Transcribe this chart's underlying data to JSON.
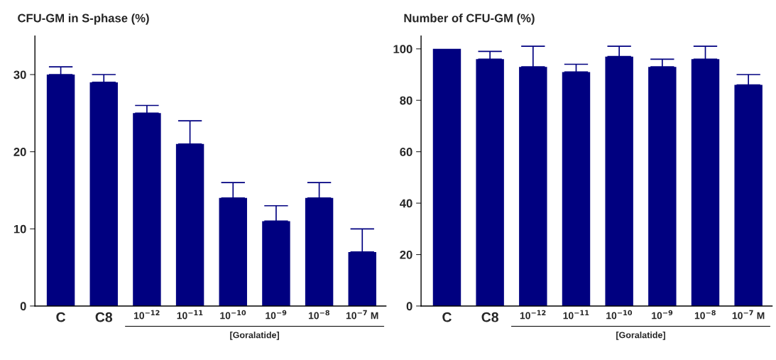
{
  "chart_data": [
    {
      "type": "bar",
      "title": "CFU-GM in S-phase (%)",
      "categories": [
        "C",
        "C8",
        "10$^{−12}$",
        "10$^{−11}$",
        "10$^{−10}$",
        "10$^{−9}$",
        "10$^{−8}$",
        "10$^{−7}$ M"
      ],
      "values": [
        30,
        29,
        25,
        21,
        14,
        11,
        14,
        7
      ],
      "errors": [
        [
          30,
          31
        ],
        [
          29,
          30
        ],
        [
          25,
          26
        ],
        [
          21,
          24
        ],
        [
          14,
          16
        ],
        [
          11,
          13
        ],
        [
          14,
          16
        ],
        [
          7,
          10
        ]
      ],
      "color": "#000080",
      "ylim": [
        0,
        35
      ],
      "yticks": [
        0,
        10,
        20,
        30
      ],
      "grid": false,
      "legend": false,
      "annotations": [
        "[Goralatide]"
      ]
    },
    {
      "type": "bar",
      "title": "Number of CFU-GM (%)",
      "categories": [
        "C",
        "C8",
        "10$^{−12}$",
        "10$^{−11}$",
        "10$^{−10}$",
        "10$^{−9}$",
        "10$^{−8}$",
        "10$^{−7}$ M"
      ],
      "values": [
        100,
        96,
        93,
        91,
        97,
        93,
        96,
        86
      ],
      "errors": [
        null,
        [
          96,
          99
        ],
        [
          93,
          101
        ],
        [
          91,
          94
        ],
        [
          97,
          101
        ],
        [
          93,
          96
        ],
        [
          96,
          101
        ],
        [
          86,
          90
        ]
      ],
      "color": "#000080",
      "ylim": [
        0,
        105
      ],
      "yticks": [
        0,
        20,
        40,
        60,
        80,
        100
      ],
      "grid": false,
      "legend": false,
      "annotations": [
        "[Goralatide]"
      ]
    }
  ]
}
